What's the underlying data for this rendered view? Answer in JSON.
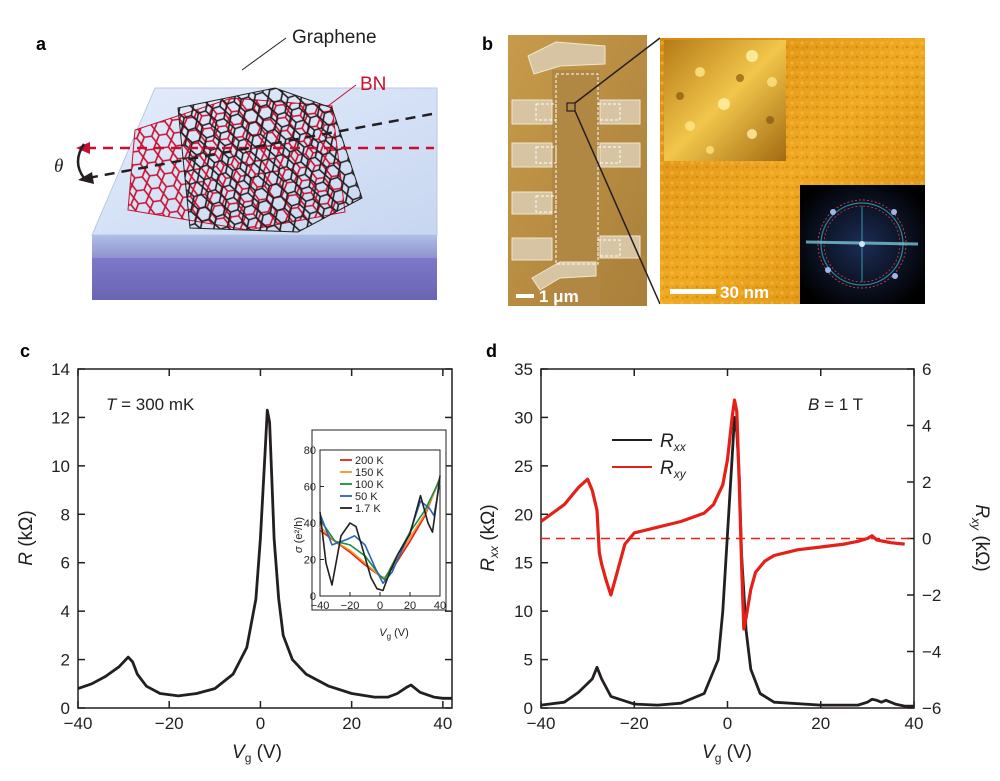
{
  "panels": {
    "a": {
      "letter": "a",
      "labels": {
        "graphene": "Graphene",
        "bn": "BN",
        "theta": "θ"
      },
      "colors": {
        "bn": "#c8102e",
        "graphene": "#231f20",
        "substrate_top": "#c9d9f2",
        "substrate_bottom": "#7b76c4"
      }
    },
    "b": {
      "letter": "b",
      "scalebar_left": "1 μm",
      "scalebar_right": "30 nm"
    },
    "c": {
      "letter": "c",
      "annotation": {
        "var": "T",
        "text": " = 300 mK"
      },
      "xlabel_main": "V",
      "xlabel_sub": "g",
      "xlabel_unit": " (V)",
      "ylabel_main": "R",
      "ylabel_unit": " (kΩ)",
      "inset": {
        "ylabel_main": "σ",
        "ylabel_unit": " (e²/h)",
        "xlabel_main": "V",
        "xlabel_sub": "g",
        "xlabel_unit": " (V)"
      }
    },
    "d": {
      "letter": "d",
      "annotation": {
        "var": "B",
        "text": " = 1 T"
      },
      "xlabel_main": "V",
      "xlabel_sub": "g",
      "xlabel_unit": " (V)",
      "ylabel_left_main": "R",
      "ylabel_left_sub": "xx",
      "ylabel_left_unit": " (kΩ)",
      "ylabel_right_main": "R",
      "ylabel_right_sub": "xy",
      "ylabel_right_unit": " (kΩ)"
    }
  },
  "chart_data": [
    {
      "id": "c-main",
      "type": "line",
      "xlim": [
        -40,
        42
      ],
      "ylim": [
        0,
        14
      ],
      "xticks": [
        -40,
        -20,
        0,
        20,
        40
      ],
      "yticks": [
        0,
        2,
        4,
        6,
        8,
        10,
        12,
        14
      ],
      "xtick_labels": [
        "−40",
        "−20",
        "0",
        "20",
        "40"
      ],
      "ytick_labels": [
        "0",
        "2",
        "4",
        "6",
        "8",
        "10",
        "12",
        "14"
      ],
      "series": [
        {
          "color": "#231f20",
          "x": [
            -40,
            -37,
            -34,
            -31,
            -29,
            -28,
            -27,
            -25,
            -22,
            -18,
            -14,
            -10,
            -6,
            -3,
            -1,
            0,
            1,
            1.5,
            2,
            2.5,
            3,
            4,
            5,
            7,
            10,
            15,
            20,
            25,
            28,
            30,
            32,
            33,
            35,
            38,
            40,
            42
          ],
          "y": [
            0.8,
            1.0,
            1.3,
            1.7,
            2.1,
            1.9,
            1.4,
            0.9,
            0.6,
            0.5,
            0.6,
            0.8,
            1.4,
            2.5,
            4.5,
            7.0,
            10.5,
            12.3,
            11.8,
            9.5,
            7.0,
            4.5,
            3.0,
            2.0,
            1.4,
            0.9,
            0.6,
            0.45,
            0.45,
            0.6,
            0.85,
            0.95,
            0.65,
            0.45,
            0.4,
            0.4
          ]
        }
      ]
    },
    {
      "id": "c-inset",
      "type": "line",
      "xlim": [
        -40,
        40
      ],
      "ylim": [
        0,
        80
      ],
      "xticks": [
        -40,
        -20,
        0,
        20,
        40
      ],
      "yticks": [
        0,
        20,
        40,
        60,
        80
      ],
      "xtick_labels": [
        "−40",
        "−20",
        "0",
        "20",
        "40"
      ],
      "ytick_labels": [
        "0",
        "20",
        "40",
        "60",
        "80"
      ],
      "legend_position": "top-left",
      "series": [
        {
          "name": "200 K",
          "color": "#e32119",
          "x": [
            -40,
            -30,
            -20,
            -10,
            0,
            3,
            10,
            20,
            30,
            40
          ],
          "y": [
            36,
            30,
            24,
            17,
            11,
            10,
            17,
            30,
            44,
            65
          ]
        },
        {
          "name": "150 K",
          "color": "#f7941d",
          "x": [
            -40,
            -30,
            -20,
            -10,
            0,
            3,
            10,
            20,
            30,
            40
          ],
          "y": [
            38,
            30,
            25,
            18,
            11,
            10,
            18,
            32,
            45,
            64
          ]
        },
        {
          "name": "100 K",
          "color": "#13904a",
          "x": [
            -40,
            -30,
            -20,
            -10,
            0,
            3,
            10,
            20,
            30,
            40
          ],
          "y": [
            42,
            30,
            28,
            22,
            11,
            9,
            20,
            35,
            47,
            64
          ]
        },
        {
          "name": "50 K",
          "color": "#2a63b3",
          "x": [
            -40,
            -32,
            -22,
            -17,
            -10,
            -3,
            2,
            8,
            20,
            27,
            33,
            36,
            40
          ],
          "y": [
            45,
            28,
            31,
            33,
            28,
            15,
            7,
            13,
            35,
            52,
            48,
            44,
            63
          ]
        },
        {
          "name": "1.7 K",
          "color": "#231f20",
          "x": [
            -40,
            -36,
            -32,
            -26,
            -20,
            -16,
            -12,
            -6,
            -2,
            2,
            6,
            12,
            20,
            27,
            32,
            35,
            38,
            40
          ],
          "y": [
            46,
            18,
            6,
            33,
            40,
            38,
            27,
            10,
            4,
            3,
            12,
            23,
            34,
            55,
            40,
            35,
            53,
            66
          ]
        }
      ]
    },
    {
      "id": "d-main",
      "type": "line",
      "xlim": [
        -40,
        40
      ],
      "ylim_left": [
        0,
        35
      ],
      "ylim_right": [
        -6,
        6
      ],
      "xticks": [
        -40,
        -20,
        0,
        20,
        40
      ],
      "yticks_left": [
        0,
        5,
        10,
        15,
        20,
        25,
        30,
        35
      ],
      "yticks_right": [
        -6,
        -4,
        -2,
        0,
        2,
        4,
        6
      ],
      "xtick_labels": [
        "−40",
        "−20",
        "0",
        "20",
        "40"
      ],
      "ytick_left_labels": [
        "0",
        "5",
        "10",
        "15",
        "20",
        "25",
        "30",
        "35"
      ],
      "ytick_right_labels": [
        "−6",
        "−4",
        "−2",
        "0",
        "2",
        "4",
        "6"
      ],
      "reference_line_right": 0,
      "legend_position": "top-left",
      "series": [
        {
          "name": "R",
          "sub": "xx",
          "axis": "left",
          "color": "#231f20",
          "x": [
            -40,
            -35,
            -32,
            -29,
            -28,
            -27,
            -25,
            -20,
            -15,
            -10,
            -5,
            -2,
            -1,
            0,
            1,
            1.5,
            2,
            2.5,
            3,
            4,
            5,
            7,
            10,
            20,
            28,
            30,
            31,
            32,
            33,
            34,
            36,
            38,
            40
          ],
          "y": [
            0.3,
            0.6,
            1.6,
            3.0,
            4.2,
            3.0,
            1.2,
            0.4,
            0.3,
            0.5,
            1.5,
            5.0,
            10.0,
            18.0,
            26.0,
            30.0,
            28.5,
            24.0,
            16.0,
            8.0,
            4.0,
            1.5,
            0.6,
            0.3,
            0.3,
            0.6,
            0.9,
            0.8,
            0.6,
            0.8,
            0.4,
            0.2,
            0.2
          ]
        },
        {
          "name": "R",
          "sub": "xy",
          "axis": "right",
          "color": "#e32119",
          "x": [
            -40,
            -35,
            -32,
            -30,
            -29,
            -28,
            -27.5,
            -27,
            -26,
            -25,
            -24,
            -22,
            -20,
            -15,
            -10,
            -5,
            -3,
            -1,
            0,
            1,
            1.5,
            2,
            2.5,
            3,
            3.5,
            4,
            5,
            6,
            8,
            10,
            15,
            20,
            25,
            28,
            30,
            31,
            32,
            35,
            38
          ],
          "y": [
            0.6,
            1.2,
            1.8,
            2.1,
            1.7,
            1.0,
            -0.5,
            -0.9,
            -1.5,
            -2.0,
            -1.4,
            -0.2,
            0.2,
            0.4,
            0.6,
            0.9,
            1.2,
            1.9,
            2.8,
            4.3,
            4.9,
            4.5,
            2.0,
            -0.8,
            -3.2,
            -2.8,
            -1.8,
            -1.2,
            -0.8,
            -0.6,
            -0.4,
            -0.3,
            -0.2,
            -0.1,
            0.0,
            0.1,
            -0.05,
            -0.15,
            -0.2
          ]
        }
      ]
    }
  ]
}
